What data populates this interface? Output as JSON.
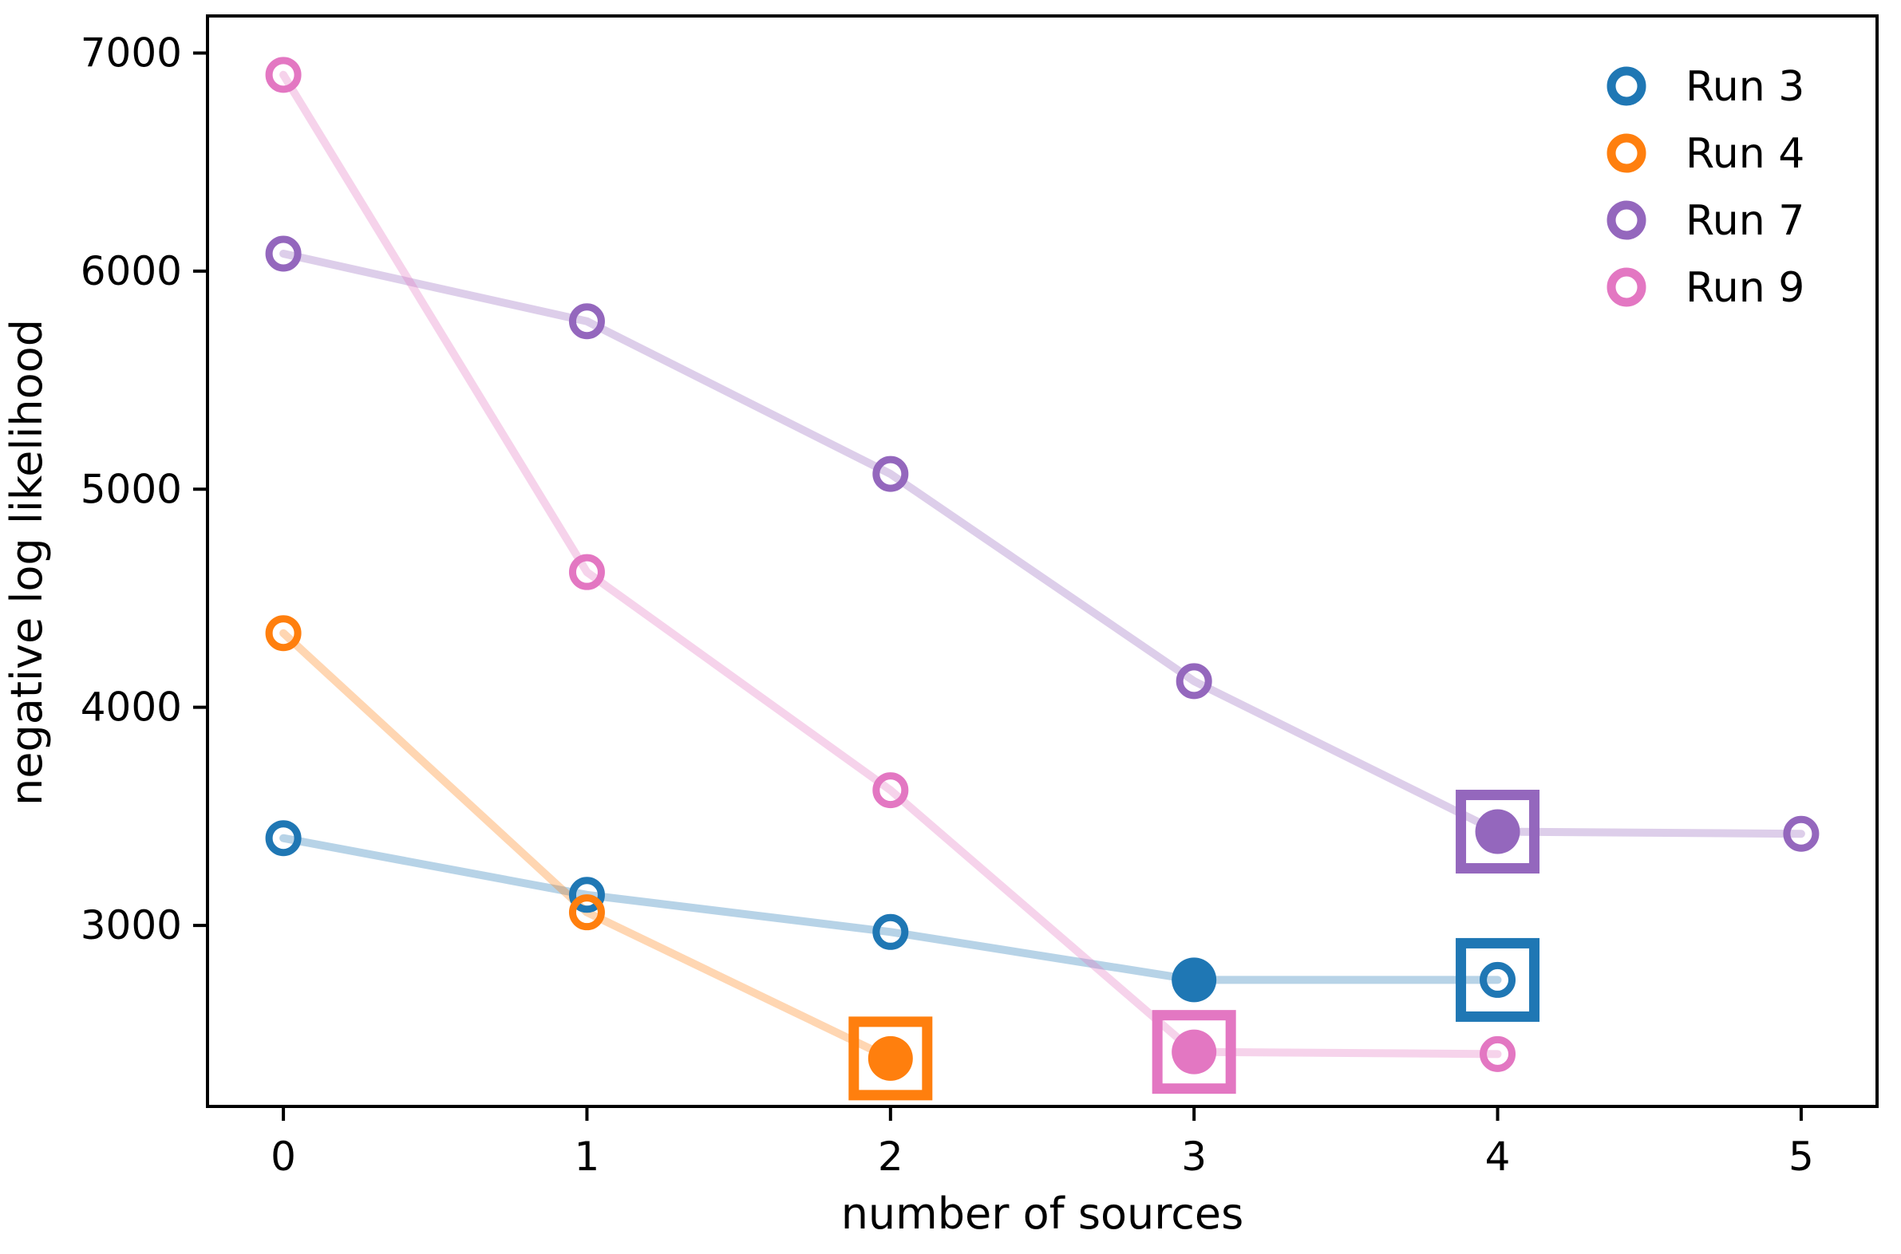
{
  "chart_data": {
    "type": "line",
    "title": "",
    "xlabel": "number of sources",
    "ylabel": "negative log likelihood",
    "x_ticks": [
      0,
      1,
      2,
      3,
      4,
      5
    ],
    "y_ticks": [
      3000,
      4000,
      5000,
      6000,
      7000
    ],
    "xlim": [
      -0.25,
      5.25
    ],
    "ylim": [
      2170,
      7170
    ],
    "grid": false,
    "legend_position": "upper right",
    "marker_style": "open circles; best/selected points shown as filled circles; final chosen model outlined with a square",
    "series": [
      {
        "name": "Run 3",
        "color": "#1f77b4",
        "x": [
          0,
          1,
          2,
          3,
          4
        ],
        "y": [
          3400,
          3140,
          2970,
          2750,
          2750
        ],
        "filled": [
          false,
          false,
          false,
          true,
          false
        ],
        "boxed": [
          false,
          false,
          false,
          false,
          true
        ]
      },
      {
        "name": "Run 4",
        "color": "#ff7f0e",
        "x": [
          0,
          1,
          2
        ],
        "y": [
          4340,
          3060,
          2390
        ],
        "filled": [
          false,
          false,
          true
        ],
        "boxed": [
          false,
          false,
          true
        ]
      },
      {
        "name": "Run 7",
        "color": "#9467bd",
        "x": [
          0,
          1,
          2,
          3,
          4,
          5
        ],
        "y": [
          6080,
          5770,
          5070,
          4120,
          3430,
          3420
        ],
        "filled": [
          false,
          false,
          false,
          false,
          true,
          false
        ],
        "boxed": [
          false,
          false,
          false,
          false,
          true,
          false
        ]
      },
      {
        "name": "Run 9",
        "color": "#e377c2",
        "x": [
          0,
          1,
          2,
          3,
          4
        ],
        "y": [
          6900,
          4620,
          3620,
          2420,
          2410
        ],
        "filled": [
          false,
          false,
          false,
          true,
          false
        ],
        "boxed": [
          false,
          false,
          false,
          true,
          false
        ]
      }
    ]
  }
}
